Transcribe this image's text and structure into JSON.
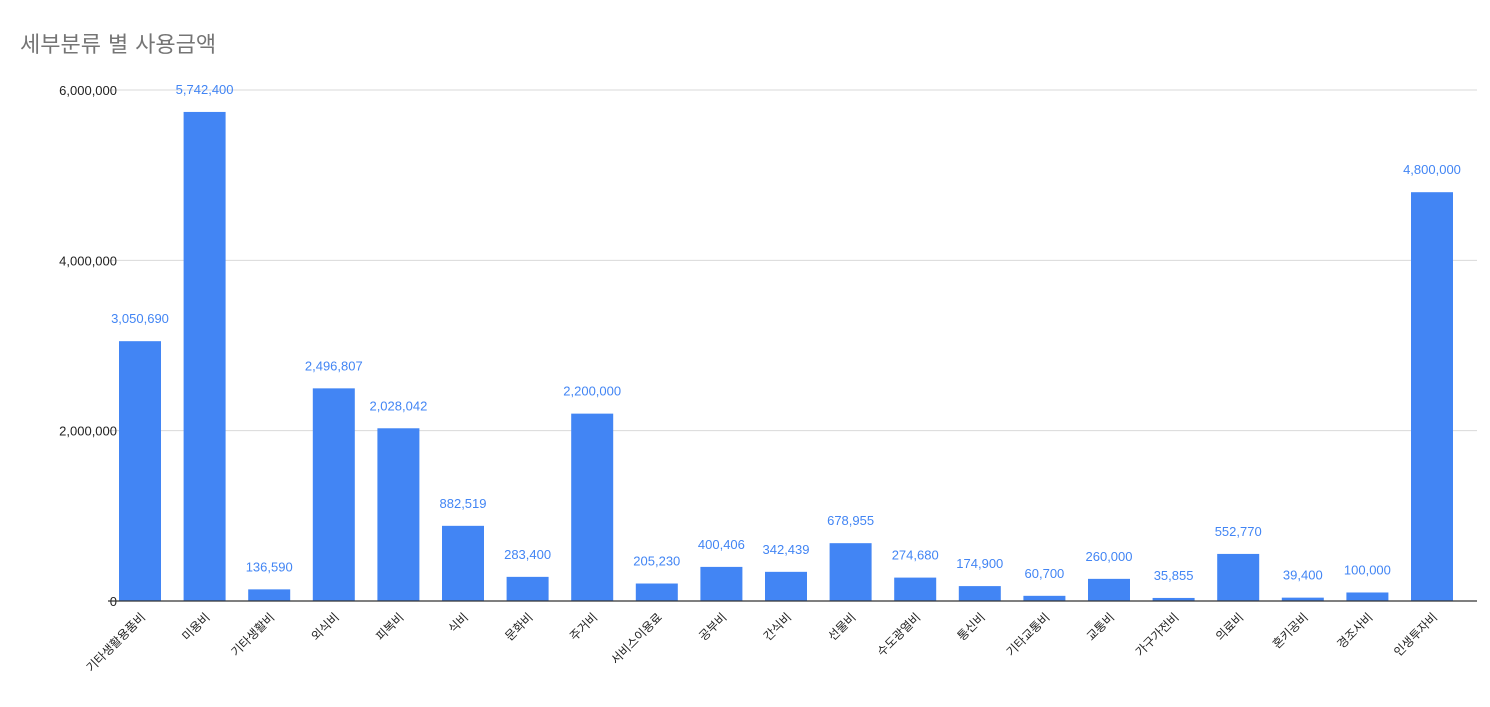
{
  "chart_data": {
    "type": "bar",
    "title": "세부분류 별 사용금액",
    "xlabel": "",
    "ylabel": "",
    "ylim": [
      0,
      6000000
    ],
    "yticks": [
      0,
      2000000,
      4000000,
      6000000
    ],
    "ytick_labels": [
      "0",
      "2,000,000",
      "4,000,000",
      "6,000,000"
    ],
    "grid": true,
    "legend": "none",
    "bar_color": "#4285f4",
    "label_color": "#4285f4",
    "categories": [
      "기타생활용품비",
      "미용비",
      "기타생활비",
      "외식비",
      "피복비",
      "식비",
      "문화비",
      "주거비",
      "서비스이용료",
      "공부비",
      "간식비",
      "선물비",
      "수도광열비",
      "통신비",
      "기타교통비",
      "교통비",
      "가구가전비",
      "의료비",
      "혼키공비",
      "경조사비",
      "인생투자비"
    ],
    "values": [
      3050690,
      5742400,
      136590,
      2496807,
      2028042,
      882519,
      283400,
      2200000,
      205230,
      400406,
      342439,
      678955,
      274680,
      174900,
      60700,
      260000,
      35855,
      552770,
      39400,
      100000,
      4800000
    ],
    "value_labels": [
      "3,050,690",
      "5,742,400",
      "136,590",
      "2,496,807",
      "2,028,042",
      "882,519",
      "283,400",
      "2,200,000",
      "205,230",
      "400,406",
      "342,439",
      "678,955",
      "274,680",
      "174,900",
      "60,700",
      "260,000",
      "35,855",
      "552,770",
      "39,400",
      "100,000",
      "4,800,000"
    ]
  }
}
